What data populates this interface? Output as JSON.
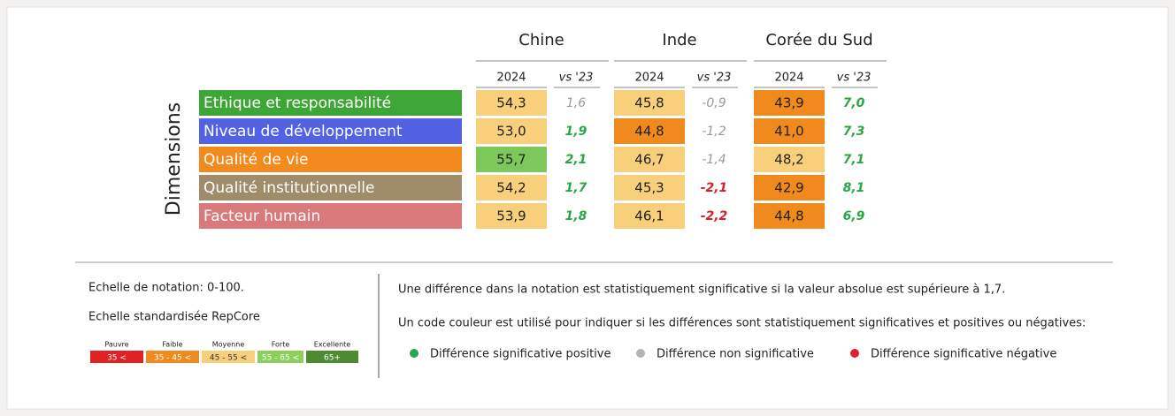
{
  "table": {
    "axis_label": "Dimensions",
    "countries": [
      {
        "name": "Chine",
        "col_year": "2024",
        "col_diff": "vs '23"
      },
      {
        "name": "Inde",
        "col_year": "2024",
        "col_diff": "vs '23"
      },
      {
        "name": "Corée du Sud",
        "col_year": "2024",
        "col_diff": "vs '23"
      }
    ],
    "rows": [
      {
        "label": "Ethique et responsabilité",
        "color": "#3ea636",
        "cells": [
          {
            "value": "54,3",
            "fill": "#f8cf7a",
            "diff": "1,6",
            "diff_color": "#9a9a9a"
          },
          {
            "value": "45,8",
            "fill": "#f8cf7a",
            "diff": "-0,9",
            "diff_color": "#9a9a9a"
          },
          {
            "value": "43,9",
            "fill": "#f08a1c",
            "diff": "7,0",
            "diff_color": "#27a844"
          }
        ]
      },
      {
        "label": "Niveau de développement",
        "color": "#5262e2",
        "cells": [
          {
            "value": "53,0",
            "fill": "#f8cf7a",
            "diff": "1,9",
            "diff_color": "#27a844"
          },
          {
            "value": "44,8",
            "fill": "#f08a1c",
            "diff": "-1,2",
            "diff_color": "#9a9a9a"
          },
          {
            "value": "41,0",
            "fill": "#f08a1c",
            "diff": "7,3",
            "diff_color": "#27a844"
          }
        ]
      },
      {
        "label": "Qualité de vie",
        "color": "#f28a1e",
        "cells": [
          {
            "value": "55,7",
            "fill": "#7cc85a",
            "diff": "2,1",
            "diff_color": "#27a844"
          },
          {
            "value": "46,7",
            "fill": "#f8cf7a",
            "diff": "-1,4",
            "diff_color": "#9a9a9a"
          },
          {
            "value": "48,2",
            "fill": "#f8cf7a",
            "diff": "7,1",
            "diff_color": "#27a844"
          }
        ]
      },
      {
        "label": "Qualité institutionnelle",
        "color": "#a08c6a",
        "cells": [
          {
            "value": "54,2",
            "fill": "#f8cf7a",
            "diff": "1,7",
            "diff_color": "#27a844"
          },
          {
            "value": "45,3",
            "fill": "#f8cf7a",
            "diff": "-2,1",
            "diff_color": "#d61f26"
          },
          {
            "value": "42,9",
            "fill": "#f08a1c",
            "diff": "8,1",
            "diff_color": "#27a844"
          }
        ]
      },
      {
        "label": "Facteur humain",
        "color": "#d9797b",
        "cells": [
          {
            "value": "53,9",
            "fill": "#f8cf7a",
            "diff": "1,8",
            "diff_color": "#27a844"
          },
          {
            "value": "46,1",
            "fill": "#f8cf7a",
            "diff": "-2,2",
            "diff_color": "#d61f26"
          },
          {
            "value": "44,8",
            "fill": "#f08a1c",
            "diff": "6,9",
            "diff_color": "#27a844"
          }
        ]
      }
    ]
  },
  "legend": {
    "scale_note": "Echelle de notation: 0-100.",
    "scale_title": "Echelle standardisée RepCore",
    "scale": [
      {
        "name": "Pauvre",
        "range": "35 <",
        "color": "#e02222"
      },
      {
        "name": "Faible",
        "range": "35 - 45 <",
        "color": "#f08a1c"
      },
      {
        "name": "Moyenne",
        "range": "45 - 55 <",
        "color": "#f8cf7a"
      },
      {
        "name": "Forte",
        "range": "55 - 65 <",
        "color": "#8ccf5a"
      },
      {
        "name": "Excellente",
        "range": "65+",
        "color": "#4e8a30"
      }
    ],
    "note1": "Une différence dans la notation est statistiquement significative si la valeur absolue est supérieure à 1,7.",
    "note2": "Un code couleur est utilisé pour indiquer si les différences sont statistiquement significatives et positives ou négatives:",
    "keys": [
      {
        "label": "Différence significative positive",
        "color": "#27a844"
      },
      {
        "label": "Différence non significative",
        "color": "#b5b5b5"
      },
      {
        "label": "Différence significative négative",
        "color": "#e0202a"
      }
    ]
  }
}
